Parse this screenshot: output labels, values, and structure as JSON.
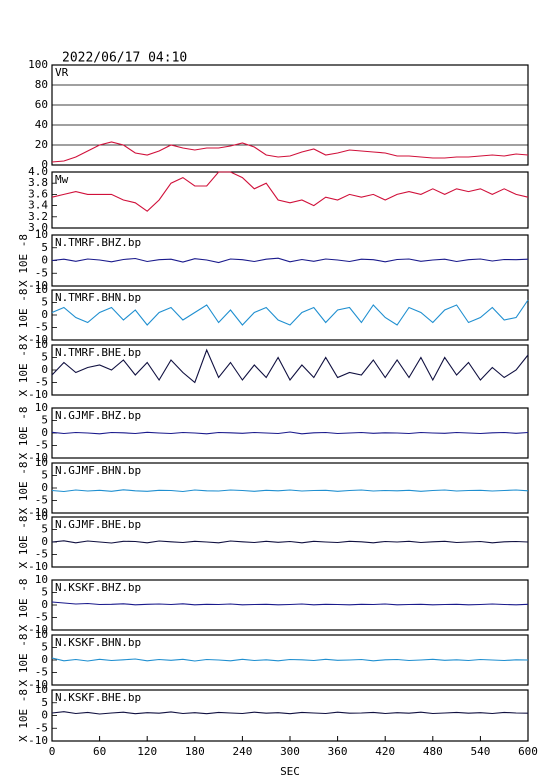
{
  "chart_data": [
    {
      "type": "line",
      "title": "2022/06/17 04:10",
      "label": "VR",
      "xlim": [
        0,
        600
      ],
      "ylim": [
        0,
        100
      ],
      "yticks": [
        0,
        20,
        40,
        60,
        80,
        100
      ],
      "grid": true,
      "x": [
        0,
        15,
        30,
        45,
        60,
        75,
        90,
        105,
        120,
        135,
        150,
        165,
        180,
        195,
        210,
        225,
        240,
        255,
        270,
        285,
        300,
        315,
        330,
        345,
        360,
        375,
        390,
        405,
        420,
        435,
        450,
        465,
        480,
        495,
        510,
        525,
        540,
        555,
        570,
        585,
        600
      ],
      "series": [
        {
          "color": "#d0103a",
          "values": [
            3,
            4,
            8,
            14,
            20,
            23,
            20,
            12,
            10,
            14,
            20,
            17,
            15,
            17,
            17,
            19,
            22,
            18,
            10,
            8,
            9,
            13,
            16,
            10,
            12,
            15,
            14,
            13,
            12,
            9,
            9,
            8,
            7,
            7,
            8,
            8,
            9,
            10,
            9,
            11,
            10
          ]
        }
      ]
    },
    {
      "type": "line",
      "label": "Mw",
      "xlim": [
        0,
        600
      ],
      "ylim": [
        3,
        4
      ],
      "yticks": [
        {
          "value": 3,
          "label": "3.0"
        },
        {
          "value": 3.2,
          "label": "3.2"
        },
        {
          "value": 3.4,
          "label": "3.4"
        },
        {
          "value": 3.6,
          "label": "3.6"
        },
        {
          "value": 3.8,
          "label": "3.8"
        },
        {
          "value": 4,
          "label": "4.0"
        }
      ],
      "grid": false,
      "x": [
        0,
        15,
        30,
        45,
        60,
        75,
        90,
        105,
        120,
        135,
        150,
        165,
        180,
        195,
        210,
        225,
        240,
        255,
        270,
        285,
        300,
        315,
        330,
        345,
        360,
        375,
        390,
        405,
        420,
        435,
        450,
        465,
        480,
        495,
        510,
        525,
        540,
        555,
        570,
        585,
        600
      ],
      "series": [
        {
          "color": "#d0103a",
          "values": [
            3.55,
            3.6,
            3.65,
            3.6,
            3.6,
            3.6,
            3.5,
            3.45,
            3.3,
            3.5,
            3.8,
            3.9,
            3.75,
            3.75,
            4.0,
            4.0,
            3.9,
            3.7,
            3.8,
            3.5,
            3.45,
            3.5,
            3.4,
            3.55,
            3.5,
            3.6,
            3.55,
            3.6,
            3.5,
            3.6,
            3.65,
            3.6,
            3.7,
            3.6,
            3.7,
            3.65,
            3.7,
            3.6,
            3.7,
            3.6,
            3.55
          ]
        }
      ]
    },
    {
      "type": "line",
      "label": "N.TMRF.BHZ.bp",
      "ylabel": "X 10E -8",
      "xlim": [
        0,
        600
      ],
      "ylim": [
        -10,
        10
      ],
      "yticks": [
        -10,
        -5,
        0,
        5,
        10
      ],
      "grid": false,
      "x": [
        0,
        15,
        30,
        45,
        60,
        75,
        90,
        105,
        120,
        135,
        150,
        165,
        180,
        195,
        210,
        225,
        240,
        255,
        270,
        285,
        300,
        315,
        330,
        345,
        360,
        375,
        390,
        405,
        420,
        435,
        450,
        465,
        480,
        495,
        510,
        525,
        540,
        555,
        570,
        585,
        600
      ],
      "series": [
        {
          "color": "#1a1a8c",
          "values": [
            0,
            0.5,
            -0.3,
            0.6,
            0.2,
            -0.5,
            0.4,
            0.8,
            -0.4,
            0.3,
            0.5,
            -0.6,
            0.7,
            0.2,
            -0.8,
            0.6,
            0.3,
            -0.4,
            0.5,
            0.9,
            -0.5,
            0.4,
            -0.3,
            0.6,
            0.2,
            -0.4,
            0.5,
            0.3,
            -0.5,
            0.4,
            0.6,
            -0.3,
            0.2,
            0.5,
            -0.4,
            0.3,
            0.6,
            -0.2,
            0.4,
            0.3,
            0.5
          ]
        }
      ]
    },
    {
      "type": "line",
      "label": "N.TMRF.BHN.bp",
      "ylabel": "X 10E -8",
      "xlim": [
        0,
        600
      ],
      "ylim": [
        -10,
        10
      ],
      "yticks": [
        -10,
        -5,
        0,
        5,
        10
      ],
      "grid": false,
      "x": [
        0,
        15,
        30,
        45,
        60,
        75,
        90,
        105,
        120,
        135,
        150,
        165,
        180,
        195,
        210,
        225,
        240,
        255,
        270,
        285,
        300,
        315,
        330,
        345,
        360,
        375,
        390,
        405,
        420,
        435,
        450,
        465,
        480,
        495,
        510,
        525,
        540,
        555,
        570,
        585,
        600
      ],
      "series": [
        {
          "color": "#1f8fd0",
          "values": [
            1,
            3,
            -1,
            -3,
            1,
            3,
            -2,
            2,
            -4,
            1,
            3,
            -2,
            1,
            4,
            -3,
            2,
            -4,
            1,
            3,
            -2,
            -4,
            1,
            3,
            -3,
            2,
            3,
            -3,
            4,
            -1,
            -4,
            3,
            1,
            -3,
            2,
            4,
            -3,
            -1,
            3,
            -2,
            -1,
            6
          ]
        }
      ]
    },
    {
      "type": "line",
      "label": "N.TMRF.BHE.bp",
      "ylabel": "X 10E -8",
      "xlim": [
        0,
        600
      ],
      "ylim": [
        -10,
        10
      ],
      "yticks": [
        -10,
        -5,
        0,
        5,
        10
      ],
      "grid": false,
      "x": [
        0,
        15,
        30,
        45,
        60,
        75,
        90,
        105,
        120,
        135,
        150,
        165,
        180,
        195,
        210,
        225,
        240,
        255,
        270,
        285,
        300,
        315,
        330,
        345,
        360,
        375,
        390,
        405,
        420,
        435,
        450,
        465,
        480,
        495,
        510,
        525,
        540,
        555,
        570,
        585,
        600
      ],
      "series": [
        {
          "color": "#101040",
          "values": [
            -2,
            3,
            -1,
            1,
            2,
            0,
            4,
            -2,
            3,
            -4,
            4,
            -1,
            -5,
            8,
            -3,
            3,
            -4,
            2,
            -3,
            5,
            -4,
            2,
            -3,
            5,
            -3,
            -1,
            -2,
            4,
            -3,
            4,
            -3,
            5,
            -4,
            5,
            -2,
            3,
            -4,
            1,
            -3,
            0,
            6
          ]
        }
      ]
    },
    {
      "type": "line",
      "label": "N.GJMF.BHZ.bp",
      "ylabel": "X 10E -8",
      "xlim": [
        0,
        600
      ],
      "ylim": [
        -10,
        10
      ],
      "yticks": [
        -10,
        -5,
        0,
        5,
        10
      ],
      "grid": false,
      "x": [
        0,
        15,
        30,
        45,
        60,
        75,
        90,
        105,
        120,
        135,
        150,
        165,
        180,
        195,
        210,
        225,
        240,
        255,
        270,
        285,
        300,
        315,
        330,
        345,
        360,
        375,
        390,
        405,
        420,
        435,
        450,
        465,
        480,
        495,
        510,
        525,
        540,
        555,
        570,
        585,
        600
      ],
      "series": [
        {
          "color": "#1a1a8c",
          "values": [
            0.3,
            -0.2,
            0.2,
            0,
            -0.3,
            0.2,
            0.1,
            -0.2,
            0.3,
            0,
            -0.2,
            0.2,
            0,
            -0.3,
            0.2,
            0.1,
            -0.1,
            0.2,
            0,
            -0.2,
            0.4,
            -0.3,
            0.1,
            0.2,
            -0.2,
            0,
            0.2,
            -0.1,
            0.1,
            0,
            -0.2,
            0.2,
            0,
            -0.1,
            0.2,
            0,
            -0.2,
            0.1,
            0.2,
            -0.1,
            0.2
          ]
        }
      ]
    },
    {
      "type": "line",
      "label": "N.GJMF.BHN.bp",
      "ylabel": "X 10E -8",
      "xlim": [
        0,
        600
      ],
      "ylim": [
        -10,
        10
      ],
      "yticks": [
        -10,
        -5,
        0,
        5,
        10
      ],
      "grid": false,
      "x": [
        0,
        15,
        30,
        45,
        60,
        75,
        90,
        105,
        120,
        135,
        150,
        165,
        180,
        195,
        210,
        225,
        240,
        255,
        270,
        285,
        300,
        315,
        330,
        345,
        360,
        375,
        390,
        405,
        420,
        435,
        450,
        465,
        480,
        495,
        510,
        525,
        540,
        555,
        570,
        585,
        600
      ],
      "series": [
        {
          "color": "#1f8fd0",
          "values": [
            -1,
            -1.4,
            -0.8,
            -1.2,
            -0.9,
            -1.3,
            -0.7,
            -1.1,
            -1.3,
            -0.9,
            -1,
            -1.4,
            -0.8,
            -1.1,
            -1.2,
            -0.8,
            -1,
            -1.3,
            -0.9,
            -1.1,
            -0.8,
            -1.2,
            -1,
            -0.9,
            -1.3,
            -1,
            -0.8,
            -1.2,
            -1,
            -1.1,
            -0.9,
            -1.3,
            -1,
            -0.8,
            -1.2,
            -1,
            -0.9,
            -1.2,
            -1,
            -0.8,
            -1.1
          ]
        }
      ]
    },
    {
      "type": "line",
      "label": "N.GJMF.BHE.bp",
      "ylabel": "X 10E -8",
      "xlim": [
        0,
        600
      ],
      "ylim": [
        -10,
        10
      ],
      "yticks": [
        -10,
        -5,
        0,
        5,
        10
      ],
      "grid": false,
      "x": [
        0,
        15,
        30,
        45,
        60,
        75,
        90,
        105,
        120,
        135,
        150,
        165,
        180,
        195,
        210,
        225,
        240,
        255,
        270,
        285,
        300,
        315,
        330,
        345,
        360,
        375,
        390,
        405,
        420,
        435,
        450,
        465,
        480,
        495,
        510,
        525,
        540,
        555,
        570,
        585,
        600
      ],
      "series": [
        {
          "color": "#101040",
          "values": [
            0,
            0.5,
            -0.3,
            0.4,
            0,
            -0.4,
            0.3,
            0.2,
            -0.3,
            0.4,
            0.1,
            -0.2,
            0.3,
            0,
            -0.3,
            0.4,
            0.1,
            -0.2,
            0.3,
            -0.1,
            0.2,
            -0.3,
            0.3,
            0,
            -0.2,
            0.3,
            0.1,
            -0.3,
            0.2,
            0,
            0.3,
            -0.2,
            0.1,
            0.3,
            -0.2,
            0,
            0.2,
            -0.3,
            0.1,
            0.2,
            0
          ]
        }
      ]
    },
    {
      "type": "line",
      "label": "N.KSKF.BHZ.bp",
      "ylabel": "X 10E -8",
      "xlim": [
        0,
        600
      ],
      "ylim": [
        -10,
        10
      ],
      "yticks": [
        -10,
        -5,
        0,
        5,
        10
      ],
      "grid": false,
      "x": [
        0,
        15,
        30,
        45,
        60,
        75,
        90,
        105,
        120,
        135,
        150,
        165,
        180,
        195,
        210,
        225,
        240,
        255,
        270,
        285,
        300,
        315,
        330,
        345,
        360,
        375,
        390,
        405,
        420,
        435,
        450,
        465,
        480,
        495,
        510,
        525,
        540,
        555,
        570,
        585,
        600
      ],
      "series": [
        {
          "color": "#1a1a8c",
          "values": [
            1.2,
            0.8,
            0.4,
            0.6,
            0.2,
            0.3,
            0.5,
            0.1,
            0.3,
            0.4,
            0.2,
            0.5,
            0.1,
            0.3,
            0.2,
            0.4,
            0.1,
            0.2,
            0.3,
            0.1,
            0.2,
            0.4,
            0.1,
            0.3,
            0.2,
            0.1,
            0.3,
            0.2,
            0.4,
            0.1,
            0.2,
            0.3,
            0.1,
            0.2,
            0.3,
            0.1,
            0.2,
            0.4,
            0.2,
            0.1,
            0.3
          ]
        }
      ]
    },
    {
      "type": "line",
      "label": "N.KSKF.BHN.bp",
      "ylabel": "X 10E -8",
      "xlim": [
        0,
        600
      ],
      "ylim": [
        -10,
        10
      ],
      "yticks": [
        -10,
        -5,
        0,
        5,
        10
      ],
      "grid": false,
      "x": [
        0,
        15,
        30,
        45,
        60,
        75,
        90,
        105,
        120,
        135,
        150,
        165,
        180,
        195,
        210,
        225,
        240,
        255,
        270,
        285,
        300,
        315,
        330,
        345,
        360,
        375,
        390,
        405,
        420,
        435,
        450,
        465,
        480,
        495,
        510,
        525,
        540,
        555,
        570,
        585,
        600
      ],
      "series": [
        {
          "color": "#1f8fd0",
          "values": [
            0.8,
            -0.3,
            0.2,
            -0.4,
            0.3,
            -0.2,
            0.1,
            0.4,
            -0.3,
            0.2,
            -0.1,
            0.3,
            -0.4,
            0.2,
            0,
            -0.3,
            0.3,
            -0.2,
            0.1,
            -0.3,
            0.2,
            0.1,
            -0.2,
            0.3,
            -0.1,
            0,
            0.2,
            -0.3,
            0.1,
            0.2,
            -0.2,
            0,
            0.3,
            -0.1,
            0.1,
            -0.2,
            0.2,
            0,
            -0.2,
            0.1,
            0
          ]
        }
      ]
    },
    {
      "type": "line",
      "label": "N.KSKF.BHE.bp",
      "ylabel": "X 10E -8",
      "xlabel": "SEC",
      "xlim": [
        0,
        600
      ],
      "xticks": [
        0,
        60,
        120,
        180,
        240,
        300,
        360,
        420,
        480,
        540,
        600
      ],
      "ylim": [
        -10,
        10
      ],
      "yticks": [
        -10,
        -5,
        0,
        5,
        10
      ],
      "grid": false,
      "x": [
        0,
        15,
        30,
        45,
        60,
        75,
        90,
        105,
        120,
        135,
        150,
        165,
        180,
        195,
        210,
        225,
        240,
        255,
        270,
        285,
        300,
        315,
        330,
        345,
        360,
        375,
        390,
        405,
        420,
        435,
        450,
        465,
        480,
        495,
        510,
        525,
        540,
        555,
        570,
        585,
        600
      ],
      "series": [
        {
          "color": "#101040",
          "values": [
            1,
            1.5,
            0.8,
            1.2,
            0.6,
            1,
            1.3,
            0.7,
            1.1,
            0.9,
            1.4,
            0.8,
            1.1,
            0.7,
            1.2,
            1,
            0.8,
            1.3,
            0.9,
            1.1,
            0.7,
            1.2,
            1,
            0.8,
            1.3,
            0.9,
            1,
            1.2,
            0.8,
            1.1,
            0.9,
            1.3,
            0.8,
            1,
            1.2,
            0.9,
            1.1,
            0.8,
            1.2,
            1,
            0.9
          ]
        }
      ]
    }
  ]
}
